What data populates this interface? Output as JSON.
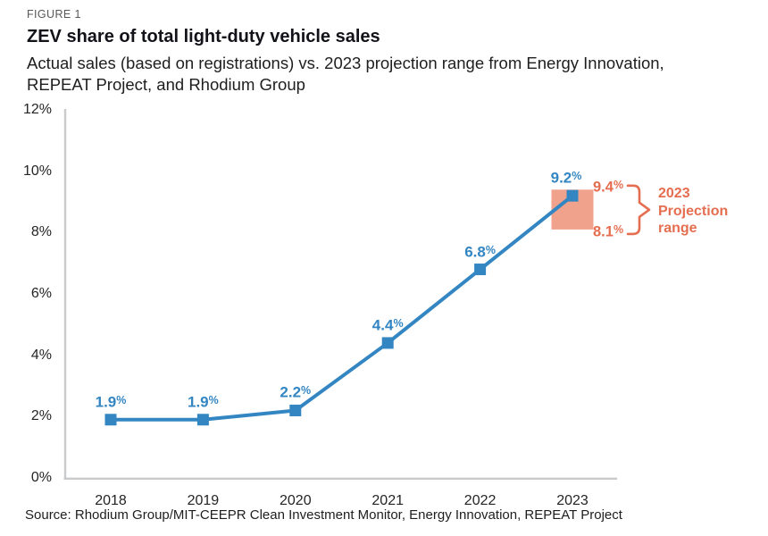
{
  "chart_data": {
    "type": "line",
    "figure_label": "FIGURE 1",
    "title": "ZEV share of total light-duty vehicle sales",
    "subtitle_lines": [
      "Actual sales (based on registrations) vs. 2023 projection range from Energy Innovation,",
      "REPEAT Project, and Rhodium Group"
    ],
    "categories": [
      "2018",
      "2019",
      "2020",
      "2021",
      "2022",
      "2023"
    ],
    "series": [
      {
        "name": "ZEV share of total light-duty vehicle sales (actual)",
        "values": [
          1.9,
          1.9,
          2.2,
          4.4,
          6.8,
          9.2
        ],
        "point_labels": [
          "1.9%",
          "1.9%",
          "2.2%",
          "4.4%",
          "6.8%",
          "9.2%"
        ]
      }
    ],
    "projection": {
      "year": "2023",
      "high": 9.4,
      "low": 8.1,
      "high_label": "9.4%",
      "low_label": "8.1%",
      "annotation": "2023 Projection range"
    },
    "xlabel": "",
    "ylabel": "",
    "ylim": [
      0,
      12
    ],
    "yticks": [
      0,
      2,
      4,
      6,
      8,
      10,
      12
    ],
    "ytick_labels": [
      "0%",
      "2%",
      "4%",
      "6%",
      "8%",
      "10%",
      "12%"
    ],
    "grid": false,
    "legend": "none",
    "colors": {
      "line": "#3386c2",
      "marker": "#3386c2",
      "data_label": "#3386c2",
      "projection_fill": "#f0a28c",
      "projection_text": "#e56e50",
      "axis": "#c9cacb"
    }
  },
  "source": "Source: Rhodium Group/MIT-CEEPR Clean Investment Monitor, Energy Innovation, REPEAT Project"
}
